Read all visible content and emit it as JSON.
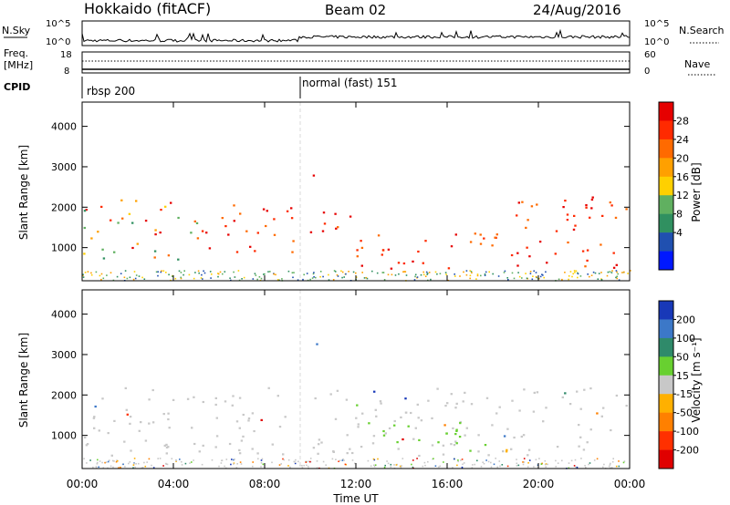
{
  "header": {
    "station": "Hokkaido (fitACF)",
    "beam": "Beam 02",
    "date": "24/Aug/2016"
  },
  "top_panel": {
    "left_label": "N.Sky",
    "left_ticks": [
      "10^5",
      "10^0"
    ],
    "right_label": "N.Search",
    "right_ticks": [
      "10^5",
      "10^0"
    ]
  },
  "freq_panel": {
    "left_label_1": "Freq.",
    "left_label_2": "[MHz]",
    "left_ticks": [
      "18",
      "8"
    ],
    "right_label": "Nave",
    "right_ticks": [
      "60",
      "0"
    ]
  },
  "cpid_panel": {
    "label": "CPID",
    "modes": [
      {
        "name": "rbsp 200",
        "start_h": 0
      },
      {
        "name": "normal (fast) 151",
        "start_h": 9.5
      }
    ]
  },
  "chart_data": [
    {
      "type": "heatmap",
      "name": "power",
      "ylabel": "Slant Range [km]",
      "yticks": [
        1000,
        2000,
        3000,
        4000
      ],
      "ylim": [
        180,
        4600
      ],
      "colorbar": {
        "label": "Power [dB]",
        "ticks": [
          "28",
          "24",
          "20",
          "16",
          "12",
          "8",
          "4"
        ],
        "colors": [
          "#e60000",
          "#ff2a00",
          "#ff6a00",
          "#ffa000",
          "#ffd000",
          "#60b060",
          "#309060",
          "#2050b0",
          "#0018ff"
        ]
      },
      "echo_regions": [
        {
          "t0": 0.0,
          "t1": 5.0,
          "r0": 700,
          "r1": 2200,
          "level": "mixed"
        },
        {
          "t0": 5.0,
          "t1": 9.5,
          "r0": 900,
          "r1": 2100,
          "level": "high"
        },
        {
          "t0": 9.5,
          "t1": 12.0,
          "r0": 1400,
          "r1": 2100,
          "level": "high"
        },
        {
          "t0": 12.0,
          "t1": 19.5,
          "r0": 500,
          "r1": 1400,
          "level": "high"
        },
        {
          "t0": 19.0,
          "t1": 24.0,
          "r0": 500,
          "r1": 2300,
          "level": "high"
        },
        {
          "t0": 10.0,
          "t1": 10.6,
          "r0": 2800,
          "r1": 3100,
          "level": "high"
        }
      ]
    },
    {
      "type": "heatmap",
      "name": "velocity",
      "ylabel": "Slant Range [km]",
      "xlabel": "Time UT",
      "yticks": [
        1000,
        2000,
        3000,
        4000
      ],
      "ylim": [
        180,
        4600
      ],
      "xticks": [
        "00:00",
        "04:00",
        "08:00",
        "12:00",
        "16:00",
        "20:00",
        "00:00"
      ],
      "colorbar": {
        "label": "Velocity [m s⁻¹]",
        "ticks": [
          "200",
          "100",
          "50",
          "15",
          "-15",
          "-50",
          "-100",
          "-200"
        ],
        "colors": [
          "#1838b8",
          "#3c78c8",
          "#2f8a6a",
          "#68d030",
          "#c8c8c8",
          "#ffb000",
          "#ff8000",
          "#ff3000",
          "#e00000"
        ]
      },
      "echo_regions": [
        {
          "t0": 0.0,
          "t1": 24.0,
          "r0": 500,
          "r1": 2200,
          "velocity": "near zero (grey)"
        },
        {
          "t0": 12.5,
          "t1": 17.0,
          "r0": 550,
          "r1": 1400,
          "velocity": "15 to 50 (green)"
        },
        {
          "t0": 10.0,
          "t1": 10.6,
          "r0": 2800,
          "r1": 3300,
          "velocity": "100 to 200 (blue)"
        },
        {
          "t0": 18.0,
          "t1": 19.0,
          "r0": 250,
          "r1": 700,
          "velocity": "-15 to -50 (orange)"
        }
      ]
    }
  ]
}
